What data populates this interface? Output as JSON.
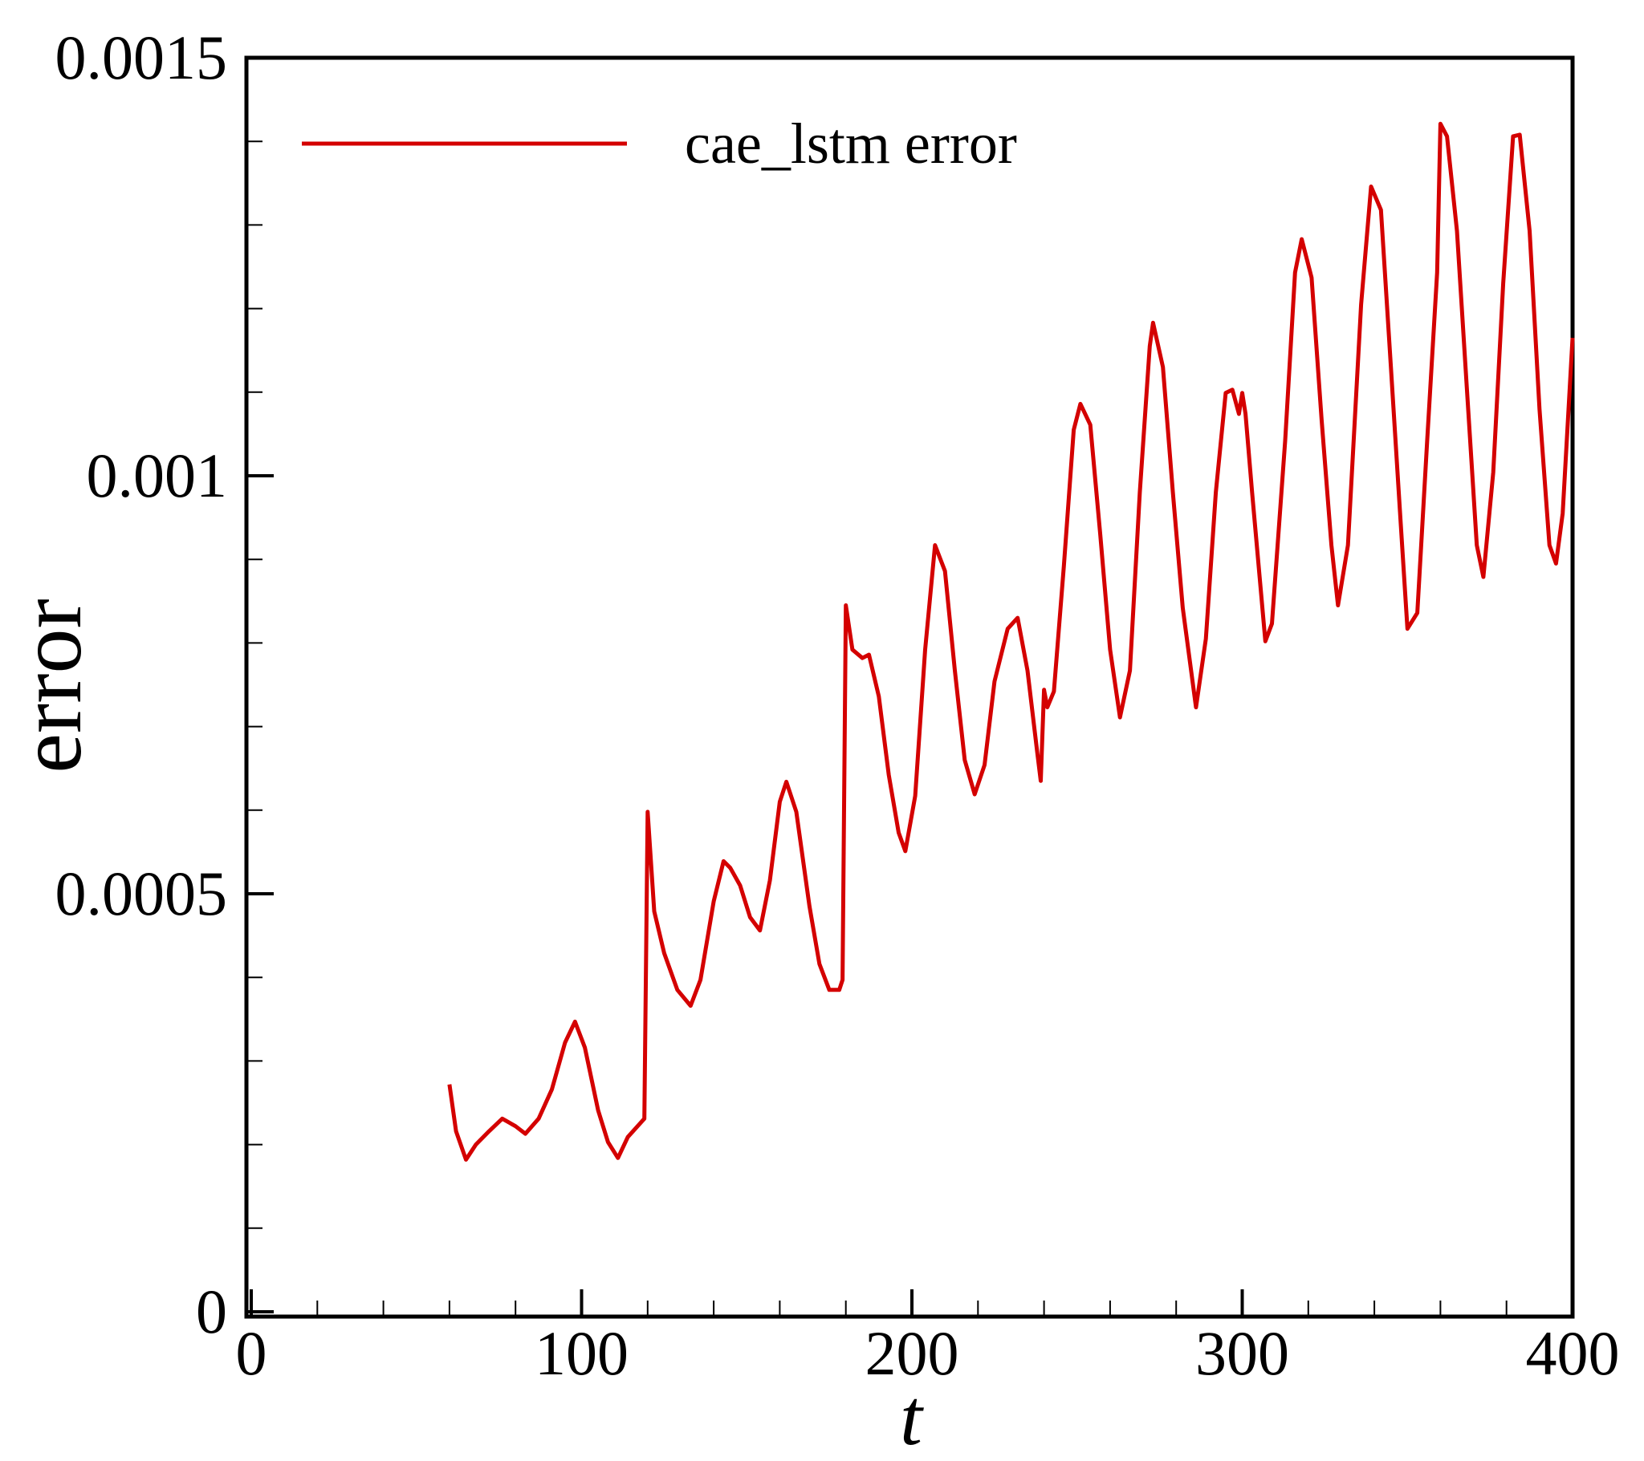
{
  "chart_data": {
    "type": "line",
    "x_label": "t",
    "y_label": "error",
    "xlim": [
      0,
      400
    ],
    "ylim": [
      0,
      0.0015
    ],
    "xticks": [
      0,
      100,
      200,
      300,
      400
    ],
    "yticks": [
      0,
      0.0005,
      0.001,
      0.0015
    ],
    "minor_xticks": [
      20,
      40,
      60,
      80,
      120,
      140,
      160,
      180,
      220,
      240,
      260,
      280,
      320,
      340,
      360,
      380
    ],
    "minor_yticks": [
      0.0001,
      0.0002,
      0.0003,
      0.0004,
      0.0006,
      0.0007,
      0.0008,
      0.0009,
      0.0011,
      0.0012,
      0.0013,
      0.0014
    ],
    "legend": "upper left",
    "series": [
      {
        "name": "cae_lstm error",
        "color": "#d40000",
        "x": [
          60,
          62,
          65,
          68,
          72,
          76,
          80,
          83,
          87,
          91,
          95,
          98,
          101,
          105,
          108,
          111,
          114,
          119,
          120,
          122,
          125,
          129,
          133,
          136,
          140,
          143,
          145,
          148,
          151,
          154,
          157,
          160,
          162,
          165,
          169,
          172,
          175,
          178,
          179,
          180,
          182,
          185,
          187,
          190,
          193,
          196,
          198,
          201,
          204,
          207,
          210,
          213,
          216,
          219,
          222,
          225,
          229,
          232,
          235,
          238,
          239,
          240,
          241,
          243,
          246,
          249,
          251,
          254,
          257,
          260,
          263,
          266,
          269,
          272,
          273,
          276,
          279,
          282,
          286,
          289,
          292,
          295,
          297,
          299,
          300,
          301,
          303,
          307,
          309,
          313,
          316,
          318,
          321,
          324,
          327,
          329,
          332,
          336,
          339,
          342,
          345,
          348,
          350,
          353,
          356,
          359,
          360,
          362,
          365,
          368,
          371,
          373,
          376,
          379,
          382,
          384,
          387,
          390,
          393,
          395,
          397,
          400
        ],
        "values": [
          0.000272,
          0.000216,
          0.000182,
          0.0002,
          0.000216,
          0.000231,
          0.000222,
          0.000213,
          0.000231,
          0.000266,
          0.000322,
          0.000347,
          0.000316,
          0.000241,
          0.000203,
          0.000184,
          0.000209,
          0.000231,
          0.000598,
          0.000479,
          0.000429,
          0.000385,
          0.000366,
          0.000397,
          0.000491,
          0.000539,
          0.000531,
          0.00051,
          0.000472,
          0.000456,
          0.000516,
          0.00061,
          0.000634,
          0.000598,
          0.000485,
          0.000416,
          0.000385,
          0.000385,
          0.000397,
          0.000845,
          0.000792,
          0.000782,
          0.000786,
          0.000736,
          0.000642,
          0.000573,
          0.000551,
          0.000617,
          0.000792,
          0.000917,
          0.000886,
          0.000767,
          0.00066,
          0.000619,
          0.000654,
          0.000754,
          0.000817,
          0.00083,
          0.000767,
          0.000667,
          0.000635,
          0.000744,
          0.000723,
          0.000742,
          0.000892,
          0.001055,
          0.001086,
          0.001061,
          0.00093,
          0.000792,
          0.000711,
          0.000767,
          0.00098,
          0.001155,
          0.001183,
          0.00113,
          0.00098,
          0.000842,
          0.000723,
          0.000805,
          0.00098,
          0.001099,
          0.001103,
          0.001074,
          0.001099,
          0.001074,
          0.00098,
          0.000802,
          0.000823,
          0.001042,
          0.001243,
          0.001283,
          0.001237,
          0.001068,
          0.000917,
          0.000845,
          0.000917,
          0.001205,
          0.001346,
          0.001318,
          0.00113,
          0.000942,
          0.000817,
          0.000836,
          0.001042,
          0.001243,
          0.001421,
          0.001406,
          0.001293,
          0.001105,
          0.000917,
          0.000879,
          0.001004,
          0.00123,
          0.001406,
          0.001408,
          0.001293,
          0.00108,
          0.000917,
          0.000895,
          0.000955,
          0.001165
        ]
      }
    ]
  }
}
